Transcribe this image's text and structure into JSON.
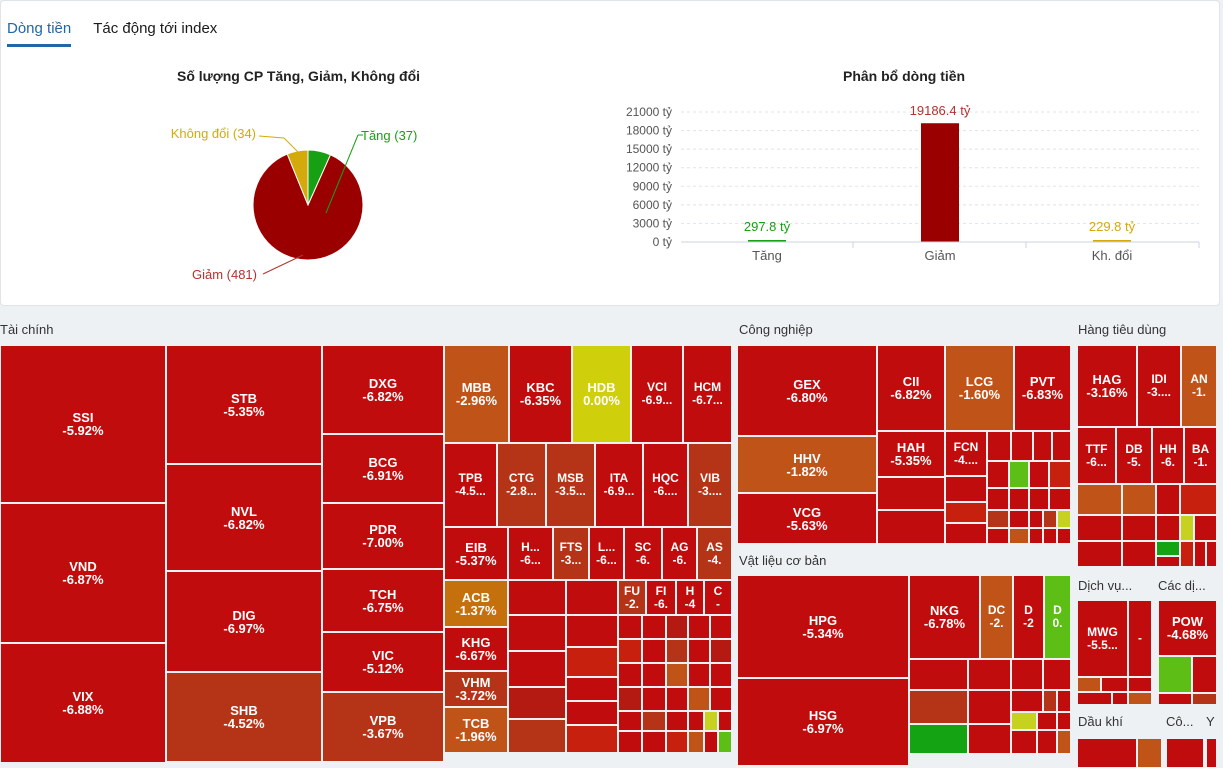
{
  "tabs": [
    {
      "label": "Dòng tiền",
      "active": true
    },
    {
      "label": "Tác động tới index",
      "active": false
    }
  ],
  "pie": {
    "title": "Số lượng CP Tăng, Giảm, Không đổi",
    "labels": {
      "up": "Tăng (37)",
      "down": "Giảm (481)",
      "flat": "Không đổi (34)"
    }
  },
  "flow": {
    "title": "Phân bổ dòng tiền",
    "labels": {
      "up": "297.8 tỷ",
      "down": "19186.4 tỷ",
      "flat": "229.8 tỷ"
    }
  },
  "chart_data": [
    {
      "type": "pie",
      "title": "Số lượng CP Tăng, Giảm, Không đổi",
      "categories": [
        "Tăng",
        "Giảm",
        "Không đổi"
      ],
      "values": [
        37,
        481,
        34
      ],
      "colors": [
        "#17a013",
        "#9b0000",
        "#d4a90c"
      ]
    },
    {
      "type": "bar",
      "title": "Phân bổ dòng tiền",
      "categories": [
        "Tăng",
        "Giảm",
        "Kh. đổi"
      ],
      "values": [
        297.8,
        19186.4,
        229.8
      ],
      "value_labels": [
        "297.8 tỷ",
        "19186.4 tỷ",
        "229.8 tỷ"
      ],
      "colors": [
        "#17a013",
        "#9b0000",
        "#d4a90c"
      ],
      "yticks": [
        "0 tỷ",
        "3000 tỷ",
        "6000 tỷ",
        "9000 tỷ",
        "12000 tỷ",
        "15000 tỷ",
        "18000 tỷ",
        "21000 tỷ"
      ],
      "ylim": [
        0,
        21000
      ]
    }
  ],
  "treemap": {
    "sectors": {
      "taichinh": "Tài chính",
      "congnghiep": "Công nghiệp",
      "hangtieudung": "Hàng tiêu dùng",
      "vatlieu": "Vật liệu cơ bản",
      "dichvu": "Dịch vụ...",
      "cacdi": "Các dị...",
      "daukhi": "Dầu khí",
      "co": "Cô...",
      "y": "Y"
    },
    "tiles": {
      "SSI": [
        "SSI",
        "-5.92%"
      ],
      "VND": [
        "VND",
        "-6.87%"
      ],
      "VIX": [
        "VIX",
        "-6.88%"
      ],
      "STB": [
        "STB",
        "-5.35%"
      ],
      "NVL": [
        "NVL",
        "-6.82%"
      ],
      "DIG": [
        "DIG",
        "-6.97%"
      ],
      "SHB": [
        "SHB",
        "-4.52%"
      ],
      "DXG": [
        "DXG",
        "-6.82%"
      ],
      "BCG": [
        "BCG",
        "-6.91%"
      ],
      "PDR": [
        "PDR",
        "-7.00%"
      ],
      "TCH": [
        "TCH",
        "-6.75%"
      ],
      "VIC": [
        "VIC",
        "-5.12%"
      ],
      "VPB": [
        "VPB",
        "-3.67%"
      ],
      "MBB": [
        "MBB",
        "-2.96%"
      ],
      "KBC": [
        "KBC",
        "-6.35%"
      ],
      "HDB": [
        "HDB",
        "0.00%"
      ],
      "VCI": [
        "VCI",
        "-6.9..."
      ],
      "HCM": [
        "HCM",
        "-6.7..."
      ],
      "TPB": [
        "TPB",
        "-4.5..."
      ],
      "CTG": [
        "CTG",
        "-2.8..."
      ],
      "MSB": [
        "MSB",
        "-3.5..."
      ],
      "ITA": [
        "ITA",
        "-6.9..."
      ],
      "HQC": [
        "HQC",
        "-6...."
      ],
      "VIB": [
        "VIB",
        "-3...."
      ],
      "EIB": [
        "EIB",
        "-5.37%"
      ],
      "H1": [
        "H...",
        "-6..."
      ],
      "FTS": [
        "FTS",
        "-3..."
      ],
      "L1": [
        "L...",
        "-6..."
      ],
      "SC": [
        "SC",
        "-6."
      ],
      "AG": [
        "AG",
        "-6."
      ],
      "AS": [
        "AS",
        "-4."
      ],
      "ACB": [
        "ACB",
        "-1.37%"
      ],
      "FU": [
        "FU",
        "-2."
      ],
      "FI": [
        "FI",
        "-6."
      ],
      "H2": [
        "H",
        "-4"
      ],
      "C1": [
        "C",
        "-"
      ],
      "KHG": [
        "KHG",
        "-6.67%"
      ],
      "VHM": [
        "VHM",
        "-3.72%"
      ],
      "TCB": [
        "TCB",
        "-1.96%"
      ],
      "GEX": [
        "GEX",
        "-6.80%"
      ],
      "CII": [
        "CII",
        "-6.82%"
      ],
      "LCG": [
        "LCG",
        "-1.60%"
      ],
      "PVT": [
        "PVT",
        "-6.83%"
      ],
      "HHV": [
        "HHV",
        "-1.82%"
      ],
      "HAH": [
        "HAH",
        "-5.35%"
      ],
      "FCN": [
        "FCN",
        "-4...."
      ],
      "VCG": [
        "VCG",
        "-5.63%"
      ],
      "HAG": [
        "HAG",
        "-3.16%"
      ],
      "IDI": [
        "IDI",
        "-3...."
      ],
      "AN": [
        "AN",
        "-1."
      ],
      "TTF": [
        "TTF",
        "-6..."
      ],
      "DB": [
        "DB",
        "-5."
      ],
      "HH": [
        "HH",
        "-6."
      ],
      "BA": [
        "BA",
        "-1."
      ],
      "HPG": [
        "HPG",
        "-5.34%"
      ],
      "NKG": [
        "NKG",
        "-6.78%"
      ],
      "DC": [
        "DC",
        "-2."
      ],
      "D1": [
        "D",
        "-2"
      ],
      "D2": [
        "D",
        "0."
      ],
      "HSG": [
        "HSG",
        "-6.97%"
      ],
      "MWG": [
        "MWG",
        "-5.5..."
      ],
      "MWX": [
        "",
        "-"
      ],
      "POW": [
        "POW",
        "-4.68%"
      ]
    }
  }
}
